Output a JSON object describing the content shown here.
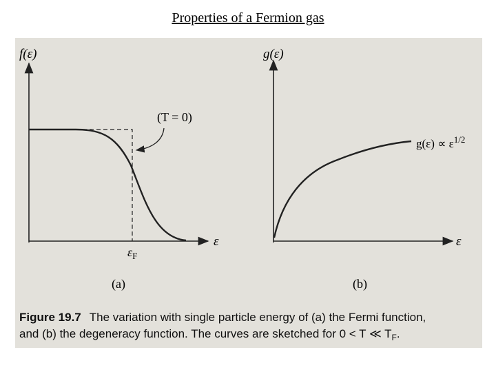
{
  "title": "Properties of a Fermion gas",
  "figure": {
    "panels": [
      {
        "y_label": "f(ε)",
        "x_label": "ε",
        "annotation": "(T = 0)",
        "marker": {
          "symbol": "ε",
          "subscript": "F"
        },
        "label": "(a)"
      },
      {
        "y_label": "g(ε)",
        "x_label": "ε",
        "curve_label": {
          "text": "g(ε) ∝ ε",
          "superscript": "1/2"
        },
        "label": "(b)"
      }
    ],
    "caption": {
      "label": "Figure 19.7",
      "text_1": "The variation with single particle energy of (a) the Fermi function,",
      "text_2": "and (b) the degeneracy function. The curves are sketched for 0 < T ≪ T",
      "subscript": "F",
      "end": "."
    }
  }
}
